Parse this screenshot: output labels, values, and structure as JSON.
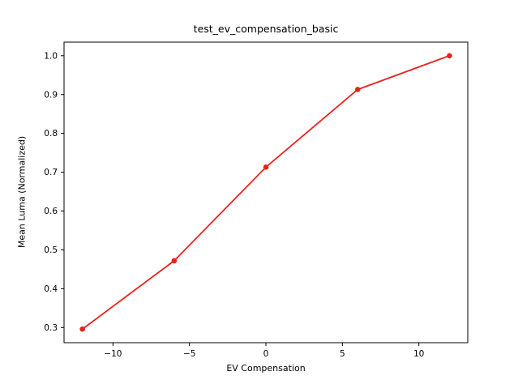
{
  "chart_data": {
    "type": "line",
    "title": "test_ev_compensation_basic",
    "xlabel": "EV Compensation",
    "ylabel": "Mean Luma (Normalized)",
    "x": [
      -12,
      -6,
      0,
      6,
      12
    ],
    "y": [
      0.296,
      0.472,
      0.713,
      0.913,
      1.0
    ],
    "xlim": [
      -13.2,
      13.2
    ],
    "ylim": [
      0.261,
      1.035
    ],
    "xticks": [
      -10,
      -5,
      0,
      5,
      10
    ],
    "yticks": [
      0.3,
      0.4,
      0.5,
      0.6,
      0.7,
      0.8,
      0.9,
      1.0
    ],
    "line_color": "#e8231f",
    "marker": "o",
    "grid": false,
    "legend_position": "none",
    "background_color": "#ffffff"
  }
}
